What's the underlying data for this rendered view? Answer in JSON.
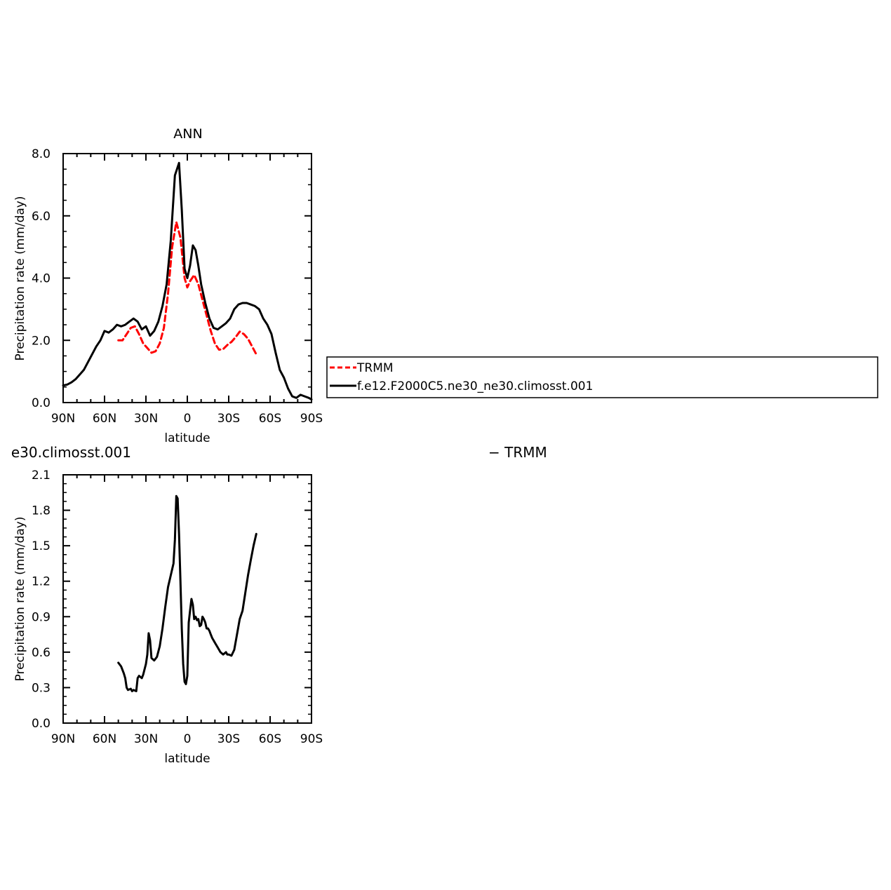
{
  "chart_data": [
    {
      "type": "line",
      "title": "ANN",
      "xlabel": "latitude",
      "ylabel": "Precipitation rate (mm/day)",
      "xlim": [
        90,
        -90
      ],
      "ylim": [
        0,
        8
      ],
      "xticks": [
        90,
        60,
        30,
        0,
        -30,
        -60,
        -90
      ],
      "xtick_labels": [
        "90N",
        "60N",
        "30N",
        "0",
        "30S",
        "60S",
        "90S"
      ],
      "yticks": [
        0,
        2,
        4,
        6,
        8
      ],
      "ytick_labels": [
        "0.0",
        "2.0",
        "4.0",
        "6.0",
        "8.0"
      ],
      "legend_position": "right",
      "series": [
        {
          "name": "TRMM",
          "color": "#ff0000",
          "dash": "dashed",
          "x": [
            50,
            47,
            44,
            41,
            38,
            35,
            32,
            29,
            26,
            23,
            20,
            17,
            14,
            11,
            8,
            5,
            2,
            0,
            -2,
            -5,
            -8,
            -11,
            -14,
            -17,
            -20,
            -23,
            -26,
            -29,
            -32,
            -35,
            -38,
            -41,
            -44,
            -47,
            -50
          ],
          "y": [
            2.0,
            2.0,
            2.2,
            2.4,
            2.45,
            2.2,
            1.9,
            1.75,
            1.6,
            1.65,
            1.9,
            2.4,
            3.5,
            5.0,
            5.8,
            5.3,
            4.0,
            3.7,
            3.9,
            4.1,
            3.8,
            3.3,
            2.8,
            2.3,
            1.9,
            1.7,
            1.72,
            1.85,
            1.95,
            2.1,
            2.28,
            2.2,
            2.05,
            1.8,
            1.55
          ]
        },
        {
          "name": "f.e12.F2000C5.ne30_ne30.climosst.001",
          "color": "#000000",
          "dash": "solid",
          "x": [
            90,
            87,
            84,
            81,
            78,
            75,
            72,
            69,
            66,
            63,
            60,
            57,
            54,
            51,
            48,
            45,
            42,
            39,
            36,
            33,
            30,
            27,
            24,
            21,
            18,
            15,
            12,
            9,
            6,
            4,
            2,
            0,
            -2,
            -4,
            -6,
            -8,
            -10,
            -13,
            -16,
            -19,
            -22,
            -25,
            -28,
            -31,
            -34,
            -37,
            -40,
            -43,
            -46,
            -49,
            -52,
            -55,
            -58,
            -61,
            -64,
            -67,
            -70,
            -73,
            -76,
            -79,
            -82,
            -85,
            -88,
            -90
          ],
          "y": [
            0.55,
            0.58,
            0.65,
            0.75,
            0.9,
            1.05,
            1.3,
            1.55,
            1.8,
            2.0,
            2.3,
            2.25,
            2.35,
            2.5,
            2.45,
            2.5,
            2.6,
            2.7,
            2.6,
            2.35,
            2.45,
            2.15,
            2.3,
            2.6,
            3.1,
            3.8,
            5.2,
            7.3,
            7.7,
            6.2,
            4.3,
            4.0,
            4.4,
            5.05,
            4.9,
            4.4,
            3.8,
            3.2,
            2.7,
            2.4,
            2.35,
            2.45,
            2.55,
            2.7,
            3.0,
            3.15,
            3.2,
            3.2,
            3.15,
            3.1,
            3.0,
            2.7,
            2.5,
            2.2,
            1.6,
            1.05,
            0.8,
            0.45,
            0.2,
            0.15,
            0.25,
            0.2,
            0.15,
            0.1
          ]
        }
      ]
    },
    {
      "type": "line",
      "title": "e30.climosst.001",
      "title_right": "− TRMM",
      "xlabel": "latitude",
      "ylabel": "Precipitation rate (mm/day)",
      "xlim": [
        90,
        -90
      ],
      "ylim": [
        0,
        2.1
      ],
      "xticks": [
        90,
        60,
        30,
        0,
        -30,
        -60,
        -90
      ],
      "xtick_labels": [
        "90N",
        "60N",
        "30N",
        "0",
        "30S",
        "60S",
        "90S"
      ],
      "yticks": [
        0,
        0.3,
        0.6,
        0.9,
        1.2,
        1.5,
        1.8,
        2.1
      ],
      "ytick_labels": [
        "0.0",
        "0.3",
        "0.6",
        "0.9",
        "1.2",
        "1.5",
        "1.8",
        "2.1"
      ],
      "series": [
        {
          "color": "#000000",
          "dash": "solid",
          "x": [
            50,
            48,
            46,
            45,
            44,
            43,
            41,
            40,
            39,
            37,
            36,
            35,
            33,
            32,
            30,
            29,
            28,
            27,
            26,
            24,
            22,
            20,
            18,
            16,
            14,
            12,
            10,
            9,
            8,
            7,
            6,
            5,
            4,
            3,
            2,
            1,
            0,
            -1,
            -2,
            -3,
            -4,
            -5,
            -6,
            -7,
            -8,
            -9,
            -10,
            -11,
            -12,
            -13,
            -14,
            -15,
            -16,
            -17,
            -18,
            -19,
            -20,
            -22,
            -24,
            -26,
            -28,
            -29,
            -30,
            -32,
            -34,
            -36,
            -38,
            -40,
            -42,
            -44,
            -46,
            -48,
            -50
          ],
          "y": [
            0.51,
            0.48,
            0.42,
            0.38,
            0.3,
            0.28,
            0.29,
            0.27,
            0.28,
            0.27,
            0.38,
            0.4,
            0.38,
            0.41,
            0.5,
            0.58,
            0.76,
            0.7,
            0.55,
            0.53,
            0.56,
            0.65,
            0.8,
            0.98,
            1.15,
            1.25,
            1.35,
            1.55,
            1.92,
            1.9,
            1.6,
            1.2,
            0.8,
            0.5,
            0.35,
            0.33,
            0.4,
            0.85,
            0.95,
            1.05,
            1.0,
            0.88,
            0.9,
            0.87,
            0.88,
            0.82,
            0.83,
            0.9,
            0.88,
            0.85,
            0.8,
            0.8,
            0.78,
            0.75,
            0.72,
            0.7,
            0.68,
            0.64,
            0.6,
            0.58,
            0.6,
            0.58,
            0.58,
            0.57,
            0.62,
            0.75,
            0.88,
            0.95,
            1.1,
            1.25,
            1.38,
            1.5,
            1.6
          ]
        }
      ]
    }
  ],
  "legend": {
    "entries": [
      {
        "label": "TRMM",
        "color": "#ff0000",
        "dash": "dashed"
      },
      {
        "label": "f.e12.F2000C5.ne30_ne30.climosst.001",
        "color": "#000000",
        "dash": "solid"
      }
    ]
  }
}
